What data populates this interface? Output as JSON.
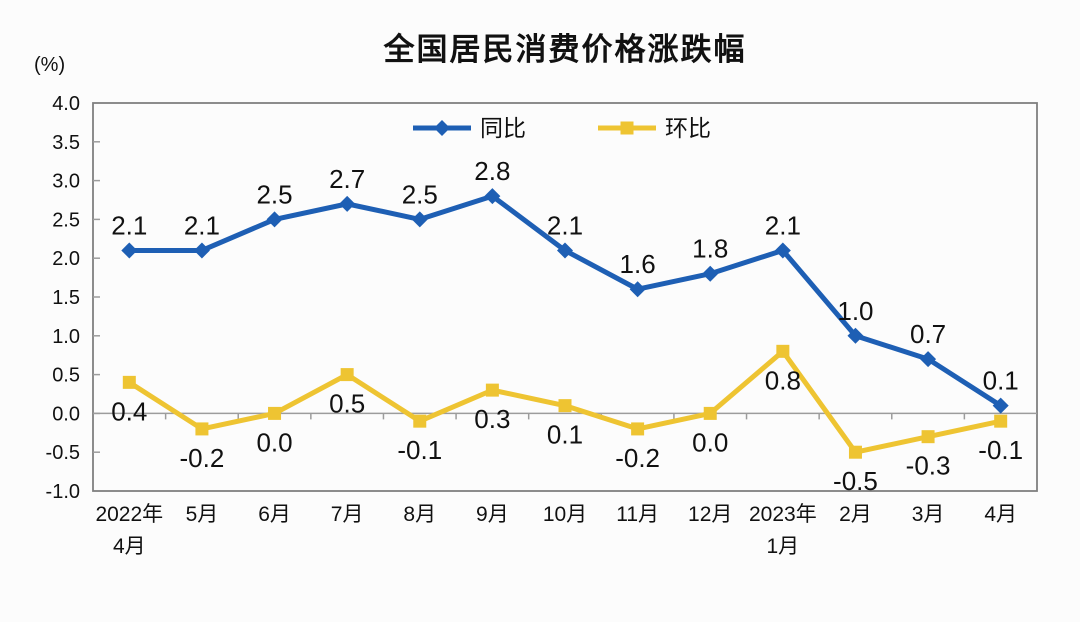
{
  "chart_data": {
    "type": "line",
    "title": "全国居民消费价格涨跌幅",
    "unit_label": "(%)",
    "categories": [
      "2022年\n4月",
      "5月",
      "6月",
      "7月",
      "8月",
      "9月",
      "10月",
      "11月",
      "12月",
      "2023年\n1月",
      "2月",
      "3月",
      "4月"
    ],
    "series": [
      {
        "key": "yoy",
        "name": "同比",
        "color": "#1E5FB4",
        "marker": "diamond",
        "values": [
          2.1,
          2.1,
          2.5,
          2.7,
          2.5,
          2.8,
          2.1,
          1.6,
          1.8,
          2.1,
          1.0,
          0.7,
          0.1
        ]
      },
      {
        "key": "mom",
        "name": "环比",
        "color": "#EEC432",
        "marker": "square",
        "values": [
          0.4,
          -0.2,
          0.0,
          0.5,
          -0.1,
          0.3,
          0.1,
          -0.2,
          0.0,
          0.8,
          -0.5,
          -0.3,
          -0.1
        ]
      }
    ],
    "ylim": [
      -1.0,
      4.0
    ],
    "ytick_step": 0.5,
    "yticks": [
      "4.0",
      "3.5",
      "3.0",
      "2.5",
      "2.0",
      "1.5",
      "1.0",
      "0.5",
      "0.0",
      "-0.5",
      "-1.0"
    ],
    "legend_position": "top-center-inside",
    "grid": false,
    "axis_color": "#7F7F7F",
    "zero_line_color": "#9C9C9C",
    "label_color": "#111111"
  }
}
